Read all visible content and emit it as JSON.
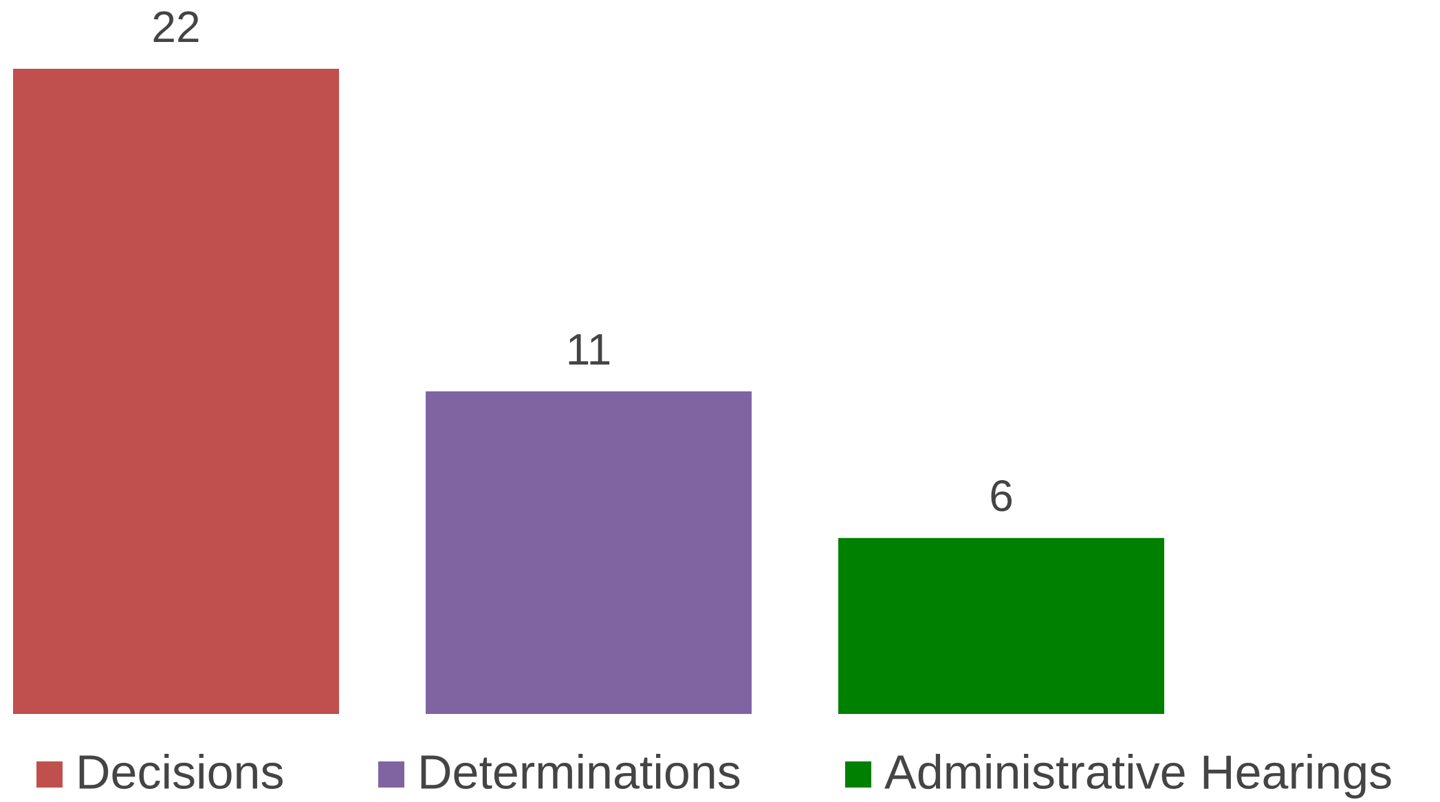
{
  "chart_data": {
    "type": "bar",
    "series": [
      {
        "name": "Decisions",
        "color": "#c0504d",
        "values": [
          22
        ]
      },
      {
        "name": "Determinations",
        "color": "#8064a2",
        "values": [
          11
        ]
      },
      {
        "name": "Administrative Hearings",
        "color": "#008000",
        "values": [
          6
        ]
      }
    ],
    "legend": "bottom"
  }
}
